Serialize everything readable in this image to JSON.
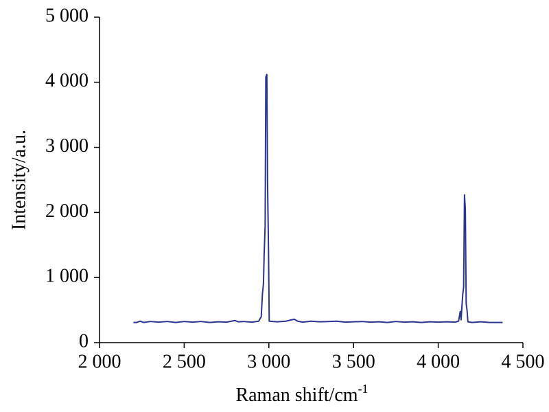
{
  "chart_data": {
    "type": "line",
    "xlabel": "Raman shift/cm",
    "xlabel_superscript": "-1",
    "ylabel": "Intensity/a.u.",
    "xlim": [
      2000,
      4500
    ],
    "xticks": [
      {
        "value": 2000,
        "label": "2 000"
      },
      {
        "value": 2500,
        "label": "2 500"
      },
      {
        "value": 3000,
        "label": "3 000"
      },
      {
        "value": 3500,
        "label": "3 500"
      },
      {
        "value": 4000,
        "label": "4 000"
      },
      {
        "value": 4500,
        "label": "4 500"
      }
    ],
    "ylim": [
      0,
      5000
    ],
    "yticks": [
      0,
      {
        "value": 1000,
        "label": "1 000"
      },
      {
        "value": 2000,
        "label": "2 000"
      },
      {
        "value": 3000,
        "label": "3 000"
      },
      {
        "value": 4000,
        "label": "4 000"
      },
      {
        "value": 5000,
        "label": "5 000"
      }
    ],
    "grid": false,
    "x": [
      2200,
      2220,
      2240,
      2260,
      2300,
      2350,
      2400,
      2450,
      2500,
      2550,
      2600,
      2650,
      2700,
      2750,
      2800,
      2820,
      2850,
      2900,
      2940,
      2955,
      2962,
      2968,
      2972,
      2978,
      2982,
      2988,
      2992,
      2998,
      3002,
      3050,
      3100,
      3150,
      3170,
      3200,
      3250,
      3300,
      3350,
      3400,
      3450,
      3500,
      3550,
      3600,
      3650,
      3700,
      3750,
      3800,
      3850,
      3900,
      3950,
      4000,
      4050,
      4100,
      4120,
      4130,
      4135,
      4140,
      4145,
      4150,
      4155,
      4160,
      4165,
      4170,
      4175,
      4200,
      4250,
      4280,
      4300,
      4350,
      4380
    ],
    "series": [
      {
        "name": "Intensity",
        "color": "#2a3590",
        "values": [
          310,
          310,
          330,
          310,
          325,
          315,
          325,
          310,
          325,
          315,
          325,
          310,
          320,
          315,
          340,
          320,
          325,
          315,
          330,
          400,
          750,
          900,
          1350,
          1800,
          4080,
          4120,
          2500,
          1400,
          330,
          320,
          330,
          360,
          330,
          315,
          330,
          320,
          325,
          330,
          315,
          320,
          325,
          315,
          320,
          310,
          325,
          315,
          320,
          310,
          320,
          315,
          320,
          315,
          330,
          480,
          350,
          560,
          750,
          850,
          2270,
          2050,
          600,
          500,
          320,
          310,
          320,
          315,
          310,
          310,
          310
        ]
      }
    ]
  }
}
